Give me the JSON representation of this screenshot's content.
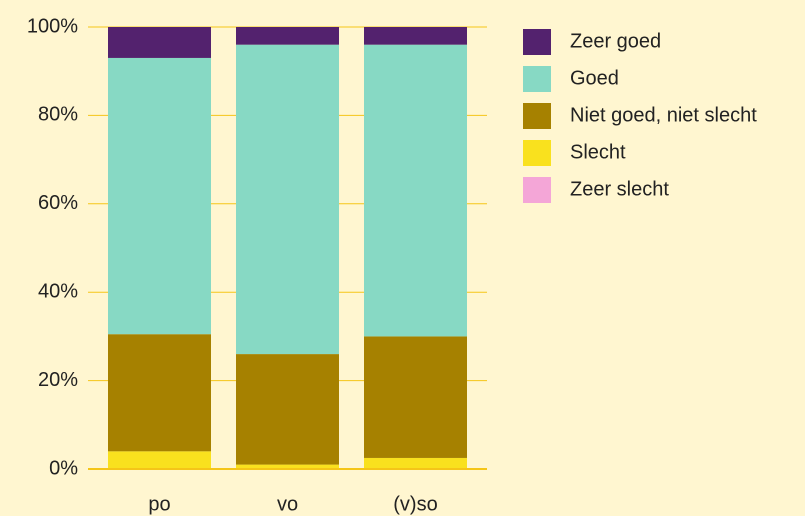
{
  "chart_data": {
    "type": "stacked-bar",
    "categories": [
      "po",
      "vo",
      "(v)so"
    ],
    "series": [
      {
        "name": "Zeer slecht",
        "color": "#f4a6d7",
        "values": [
          0,
          0,
          0
        ]
      },
      {
        "name": "Slecht",
        "color": "#f9e11e",
        "values": [
          4,
          1,
          2.5
        ]
      },
      {
        "name": "Niet goed, niet slecht",
        "color": "#a68100",
        "values": [
          26.5,
          25,
          27.5
        ]
      },
      {
        "name": "Goed",
        "color": "#87d9c4",
        "values": [
          62.5,
          70,
          66
        ]
      },
      {
        "name": "Zeer goed",
        "color": "#53226e",
        "values": [
          7,
          4,
          4
        ]
      }
    ],
    "ylim": [
      0,
      100
    ],
    "yticks": [
      {
        "value": 0,
        "label": "0%"
      },
      {
        "value": 20,
        "label": "20%"
      },
      {
        "value": 40,
        "label": "40%"
      },
      {
        "value": 60,
        "label": "60%"
      },
      {
        "value": 80,
        "label": "80%"
      },
      {
        "value": 100,
        "label": "100%"
      }
    ],
    "grid": true,
    "grid_color": "#f5c518"
  }
}
